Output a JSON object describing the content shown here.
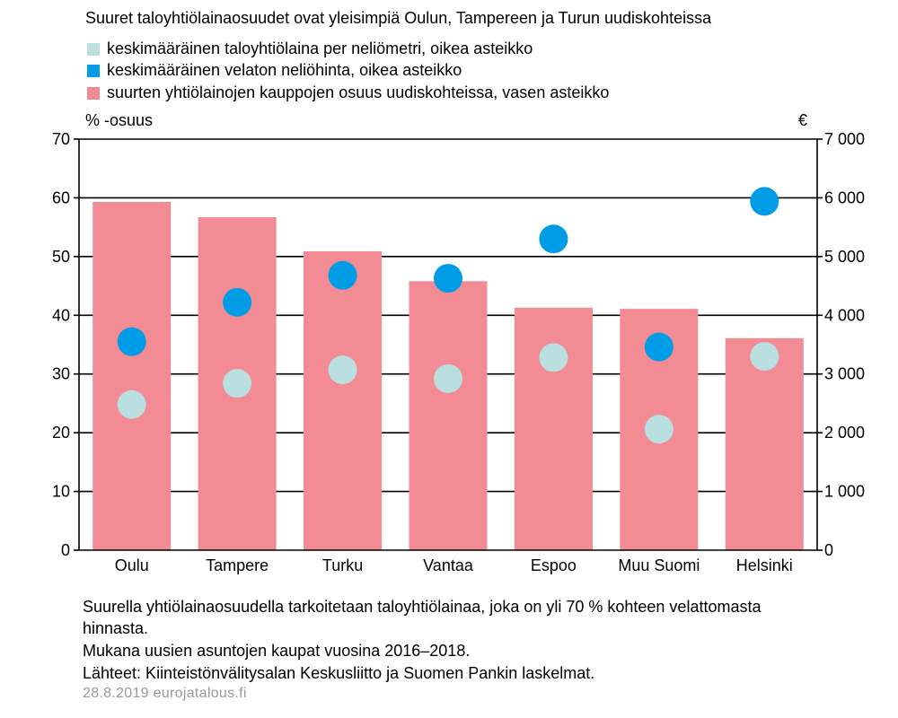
{
  "chart_data": {
    "type": "bar",
    "title": "Suuret taloyhtiölainaosuudet ovat yleisimpiä Oulun, Tampereen ja Turun uudiskohteissa",
    "categories": [
      "Oulu",
      "Tampere",
      "Turku",
      "Vantaa",
      "Espoo",
      "Muu Suomi",
      "Helsinki"
    ],
    "series": [
      {
        "name": "keskimääräinen taloyhtiölaina per neliömetri, oikea asteikko",
        "type": "scatter",
        "axis": "right",
        "color": "#b9dfe1",
        "values": [
          2480,
          2840,
          3070,
          2920,
          3280,
          2060,
          3300
        ]
      },
      {
        "name": "keskimääräinen velaton neliöhinta, oikea asteikko",
        "type": "scatter",
        "axis": "right",
        "color": "#009de6",
        "values": [
          3550,
          4220,
          4680,
          4630,
          5300,
          3460,
          5940
        ]
      },
      {
        "name": "suurten yhtiölainojen kauppojen osuus uudiskohteissa, vasen asteikko",
        "type": "bar",
        "axis": "left",
        "color": "#f28b93",
        "values": [
          59.3,
          56.7,
          50.9,
          45.8,
          41.3,
          41.1,
          36.1
        ]
      }
    ],
    "ylabel_left": "% -osuus",
    "ylabel_right": "€",
    "ylim_left": [
      0,
      70
    ],
    "ylim_right": [
      0,
      7000
    ],
    "yticks_left": [
      "0",
      "10",
      "20",
      "30",
      "40",
      "50",
      "60",
      "70"
    ],
    "yticks_right": [
      "0",
      "1 000",
      "2 000",
      "3 000",
      "4 000",
      "5 000",
      "6 000",
      "7 000"
    ],
    "grid": true,
    "legend_position": "top-left"
  },
  "notes": [
    "Suurella yhtiölainaosuudella tarkoitetaan taloyhtiölainaa, joka on yli 70 % kohteen velattomasta",
    "hinnasta.",
    "Mukana uusien asuntojen kaupat vuosina 2016–2018.",
    "Lähteet: Kiinteistönvälitysalan Keskusliitto ja Suomen Pankin laskelmat."
  ],
  "footer": "28.8.2019 eurojatalous.fi"
}
